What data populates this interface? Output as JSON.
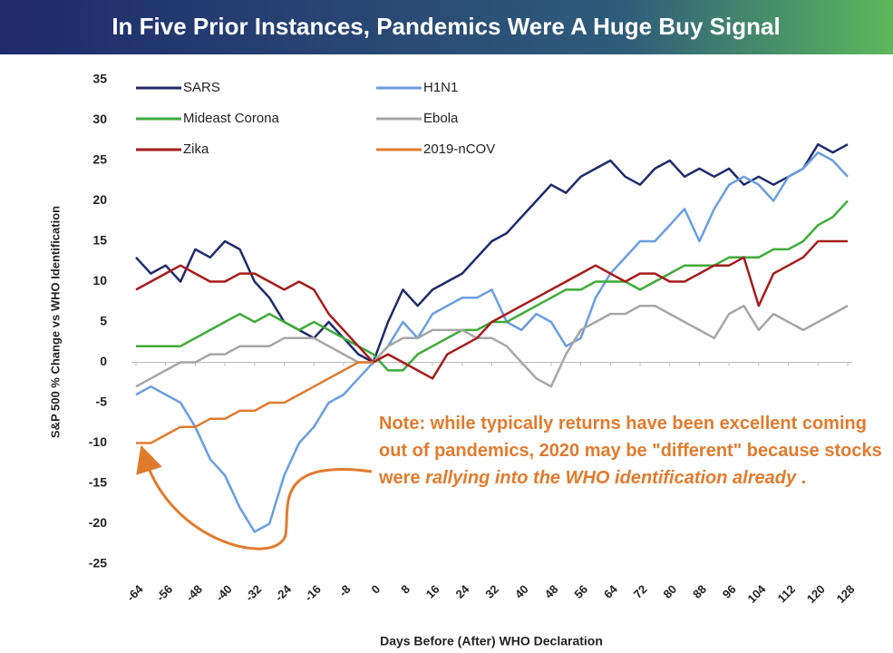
{
  "chart_data": {
    "type": "line",
    "title": "In Five Prior Instances, Pandemics Were A Huge Buy Signal",
    "xlabel": "Days Before (After) WHO Declaration",
    "ylabel": "S&P 500 % Change vs WHO Identification",
    "note": [
      "Note: while typically returns have been excellent coming out of pandemics, 2020 may be \"different\" because stocks were ",
      "rallying into the WHO identification already",
      " ."
    ],
    "x": [
      -64,
      -60,
      -56,
      -52,
      -48,
      -44,
      -40,
      -36,
      -32,
      -28,
      -24,
      -20,
      -16,
      -12,
      -8,
      -4,
      0,
      4,
      8,
      12,
      16,
      20,
      24,
      28,
      32,
      36,
      40,
      44,
      48,
      52,
      56,
      60,
      64,
      68,
      72,
      76,
      80,
      84,
      88,
      92,
      96,
      100,
      104,
      108,
      112,
      116,
      120,
      124,
      128
    ],
    "xlim": [
      -64,
      128
    ],
    "xticks": [
      -64,
      -56,
      -48,
      -40,
      -32,
      -24,
      -16,
      -8,
      0,
      8,
      16,
      24,
      32,
      40,
      48,
      56,
      64,
      72,
      80,
      88,
      96,
      104,
      112,
      120,
      128
    ],
    "ylim": [
      -25,
      35
    ],
    "yticks": [
      -25,
      -20,
      -15,
      -10,
      -5,
      0,
      5,
      10,
      15,
      20,
      25,
      30,
      35
    ],
    "grid": false,
    "series": [
      {
        "name": "SARS",
        "color": "#1f2a6b",
        "values": [
          13,
          11,
          12,
          10,
          14,
          13,
          15,
          14,
          10,
          8,
          5,
          4,
          3,
          5,
          3,
          1,
          0,
          5,
          9,
          7,
          9,
          10,
          11,
          13,
          15,
          16,
          18,
          20,
          22,
          21,
          23,
          24,
          25,
          23,
          22,
          24,
          25,
          23,
          24,
          23,
          24,
          22,
          23,
          22,
          23,
          24,
          27,
          26,
          27
        ]
      },
      {
        "name": "H1N1",
        "color": "#6a9de0",
        "values": [
          -4,
          -3,
          -4,
          -5,
          -8,
          -12,
          -14,
          -18,
          -21,
          -20,
          -14,
          -10,
          -8,
          -5,
          -4,
          -2,
          0,
          2,
          5,
          3,
          6,
          7,
          8,
          8,
          9,
          5,
          4,
          6,
          5,
          2,
          3,
          8,
          11,
          13,
          15,
          15,
          17,
          19,
          15,
          19,
          22,
          23,
          22,
          20,
          23,
          24,
          26,
          25,
          23
        ]
      },
      {
        "name": "Mideast Corona",
        "color": "#3faa3a",
        "values": [
          2,
          2,
          2,
          2,
          3,
          4,
          5,
          6,
          5,
          6,
          5,
          4,
          5,
          4,
          3,
          2,
          1,
          -1,
          -1,
          1,
          2,
          3,
          4,
          4,
          5,
          5,
          6,
          7,
          8,
          9,
          9,
          10,
          10,
          10,
          9,
          10,
          11,
          12,
          12,
          12,
          13,
          13,
          13,
          14,
          14,
          15,
          17,
          18,
          20
        ]
      },
      {
        "name": "Ebola",
        "color": "#a6a6a6",
        "values": [
          -3,
          -2,
          -1,
          0,
          0,
          1,
          1,
          2,
          2,
          2,
          3,
          3,
          3,
          2,
          1,
          0,
          0,
          2,
          3,
          3,
          4,
          4,
          4,
          3,
          3,
          2,
          0,
          -2,
          -3,
          1,
          4,
          5,
          6,
          6,
          7,
          7,
          6,
          5,
          4,
          3,
          6,
          7,
          4,
          6,
          5,
          4,
          5,
          6,
          7
        ]
      },
      {
        "name": "Zika",
        "color": "#a51c1c",
        "values": [
          9,
          10,
          11,
          12,
          11,
          10,
          10,
          11,
          11,
          10,
          9,
          10,
          9,
          6,
          4,
          2,
          0,
          1,
          0,
          -1,
          -2,
          1,
          2,
          3,
          5,
          6,
          7,
          8,
          9,
          10,
          11,
          12,
          11,
          10,
          11,
          11,
          10,
          10,
          11,
          12,
          12,
          13,
          7,
          11,
          12,
          13,
          15,
          15,
          15
        ]
      },
      {
        "name": "2019-nCOV",
        "color": "#e07b2e",
        "values": [
          -10,
          -10,
          -9,
          -8,
          -8,
          -7,
          -7,
          -6,
          -6,
          -5,
          -5,
          -4,
          -3,
          -2,
          -1,
          0,
          0,
          null,
          null,
          null,
          null,
          null,
          null,
          null,
          null,
          null,
          null,
          null,
          null,
          null,
          null,
          null,
          null,
          null,
          null,
          null,
          null,
          null,
          null,
          null,
          null,
          null,
          null,
          null,
          null,
          null,
          null,
          null,
          null
        ]
      }
    ]
  }
}
